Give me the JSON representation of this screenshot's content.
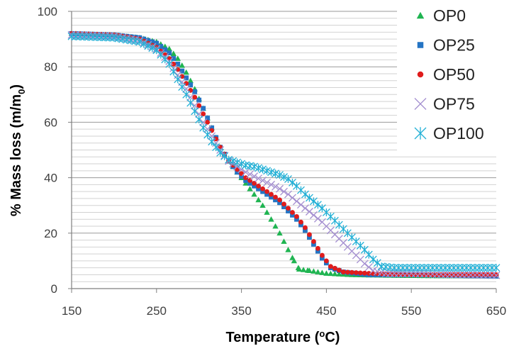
{
  "chart_data": {
    "type": "scatter",
    "title": "",
    "xlabel": "Temperature (oC)",
    "xlabel_parts": {
      "main": "Temperature (",
      "sup": "o",
      "tail": "C)"
    },
    "ylabel": "% Mass loss (m/m0)",
    "ylabel_parts": {
      "main": "% Mass loss (m/m",
      "sub": "0",
      "tail": ")"
    },
    "xlim": [
      150,
      650
    ],
    "ylim": [
      0,
      100
    ],
    "x_ticks": [
      "150",
      "250",
      "350",
      "450",
      "550",
      "650"
    ],
    "y_ticks": [
      "0",
      "20",
      "40",
      "60",
      "80",
      "100"
    ],
    "grid": "horizontal",
    "legend_position": "top-right",
    "series": [
      {
        "name": "OP0",
        "marker": "triangle",
        "color": "#1fb451",
        "points": [
          [
            150,
            92
          ],
          [
            200,
            91.5
          ],
          [
            230,
            90.5
          ],
          [
            250,
            89
          ],
          [
            265,
            86.5
          ],
          [
            275,
            83
          ],
          [
            285,
            78
          ],
          [
            295,
            72
          ],
          [
            305,
            65
          ],
          [
            315,
            58
          ],
          [
            325,
            51
          ],
          [
            335,
            46
          ],
          [
            345,
            42
          ],
          [
            355,
            38
          ],
          [
            365,
            34
          ],
          [
            375,
            30
          ],
          [
            385,
            25
          ],
          [
            395,
            20
          ],
          [
            405,
            14
          ],
          [
            412,
            10
          ],
          [
            418,
            7
          ],
          [
            430,
            6.5
          ],
          [
            450,
            5.5
          ],
          [
            480,
            5
          ],
          [
            520,
            4.8
          ],
          [
            580,
            4.6
          ],
          [
            650,
            4.5
          ]
        ]
      },
      {
        "name": "OP25",
        "marker": "square",
        "color": "#2474c4",
        "points": [
          [
            150,
            92
          ],
          [
            200,
            91.5
          ],
          [
            230,
            90.5
          ],
          [
            250,
            88.5
          ],
          [
            265,
            85
          ],
          [
            275,
            81
          ],
          [
            285,
            76
          ],
          [
            295,
            71
          ],
          [
            305,
            65
          ],
          [
            315,
            58
          ],
          [
            325,
            51
          ],
          [
            335,
            46
          ],
          [
            345,
            42
          ],
          [
            355,
            39
          ],
          [
            365,
            37
          ],
          [
            375,
            35
          ],
          [
            385,
            33
          ],
          [
            395,
            31
          ],
          [
            405,
            28
          ],
          [
            415,
            25
          ],
          [
            425,
            21
          ],
          [
            435,
            16
          ],
          [
            445,
            11
          ],
          [
            455,
            7.5
          ],
          [
            470,
            6
          ],
          [
            500,
            5
          ],
          [
            550,
            5
          ],
          [
            600,
            4.8
          ],
          [
            650,
            4.5
          ]
        ]
      },
      {
        "name": "OP50",
        "marker": "circle",
        "color": "#e01c1c",
        "points": [
          [
            150,
            92
          ],
          [
            200,
            91.5
          ],
          [
            230,
            90
          ],
          [
            250,
            87
          ],
          [
            265,
            83
          ],
          [
            275,
            79
          ],
          [
            285,
            74
          ],
          [
            295,
            69
          ],
          [
            305,
            63
          ],
          [
            315,
            57
          ],
          [
            325,
            51
          ],
          [
            335,
            46
          ],
          [
            345,
            43
          ],
          [
            355,
            40
          ],
          [
            365,
            38
          ],
          [
            375,
            36
          ],
          [
            385,
            34
          ],
          [
            395,
            32
          ],
          [
            405,
            29
          ],
          [
            415,
            26
          ],
          [
            425,
            22
          ],
          [
            435,
            17
          ],
          [
            445,
            12
          ],
          [
            455,
            8
          ],
          [
            470,
            6
          ],
          [
            500,
            5.5
          ],
          [
            550,
            5
          ],
          [
            600,
            5
          ],
          [
            650,
            5
          ]
        ]
      },
      {
        "name": "OP75",
        "marker": "x",
        "color": "#a48fd0",
        "points": [
          [
            150,
            91.5
          ],
          [
            200,
            91
          ],
          [
            230,
            89.5
          ],
          [
            250,
            86.5
          ],
          [
            265,
            82
          ],
          [
            275,
            77
          ],
          [
            285,
            72
          ],
          [
            295,
            66
          ],
          [
            305,
            60
          ],
          [
            315,
            55
          ],
          [
            325,
            50
          ],
          [
            335,
            46
          ],
          [
            345,
            44
          ],
          [
            355,
            42
          ],
          [
            365,
            40.5
          ],
          [
            375,
            39
          ],
          [
            385,
            37.5
          ],
          [
            395,
            36
          ],
          [
            405,
            34
          ],
          [
            415,
            31.5
          ],
          [
            425,
            29
          ],
          [
            435,
            26.5
          ],
          [
            445,
            24
          ],
          [
            455,
            21
          ],
          [
            465,
            18
          ],
          [
            475,
            15
          ],
          [
            485,
            12
          ],
          [
            495,
            9
          ],
          [
            505,
            6.5
          ],
          [
            520,
            5.5
          ],
          [
            550,
            5.5
          ],
          [
            600,
            5
          ],
          [
            650,
            4.8
          ]
        ]
      },
      {
        "name": "OP100",
        "marker": "asterisk",
        "color": "#22b0d6",
        "points": [
          [
            150,
            91
          ],
          [
            200,
            90.5
          ],
          [
            230,
            89
          ],
          [
            250,
            86
          ],
          [
            265,
            81
          ],
          [
            275,
            75.5
          ],
          [
            285,
            70
          ],
          [
            295,
            64
          ],
          [
            305,
            58
          ],
          [
            315,
            53
          ],
          [
            325,
            49
          ],
          [
            335,
            46.5
          ],
          [
            345,
            45.5
          ],
          [
            355,
            44.5
          ],
          [
            365,
            44
          ],
          [
            375,
            43
          ],
          [
            385,
            42
          ],
          [
            395,
            41
          ],
          [
            405,
            39.5
          ],
          [
            415,
            37
          ],
          [
            425,
            34
          ],
          [
            435,
            31.5
          ],
          [
            445,
            29
          ],
          [
            455,
            26
          ],
          [
            465,
            23
          ],
          [
            475,
            20
          ],
          [
            485,
            17
          ],
          [
            495,
            14
          ],
          [
            505,
            10.5
          ],
          [
            515,
            8
          ],
          [
            530,
            7.5
          ],
          [
            550,
            7.5
          ],
          [
            600,
            7.5
          ],
          [
            650,
            7.5
          ]
        ]
      }
    ]
  }
}
